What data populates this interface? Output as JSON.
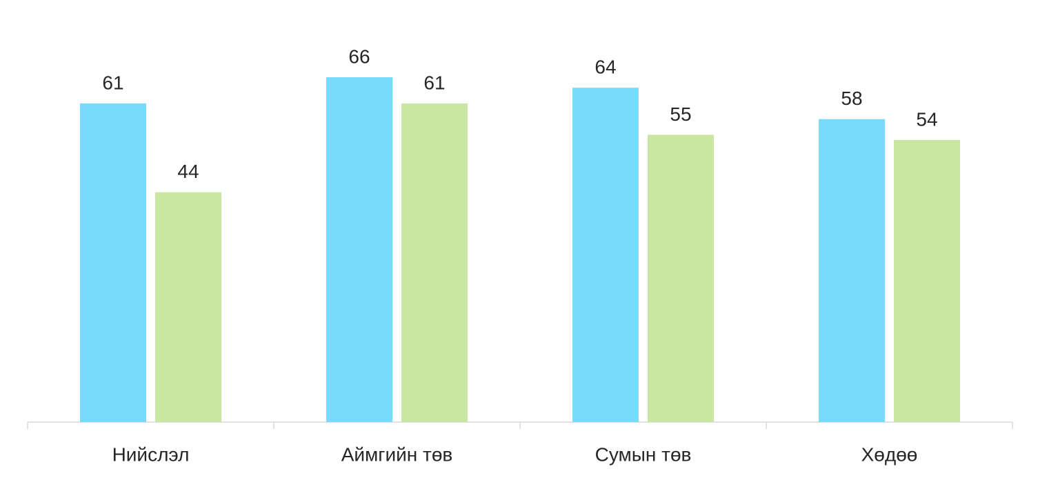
{
  "chart_data": {
    "type": "bar",
    "categories": [
      "Нийслэл",
      "Аймгийн төв",
      "Сумын төв",
      "Хөдөө"
    ],
    "series": [
      {
        "color": "#78dafc",
        "values": [
          61,
          66,
          64,
          58
        ]
      },
      {
        "color": "#c9e6a3",
        "values": [
          44,
          61,
          55,
          54
        ]
      }
    ],
    "ylim": [
      0,
      80
    ]
  }
}
